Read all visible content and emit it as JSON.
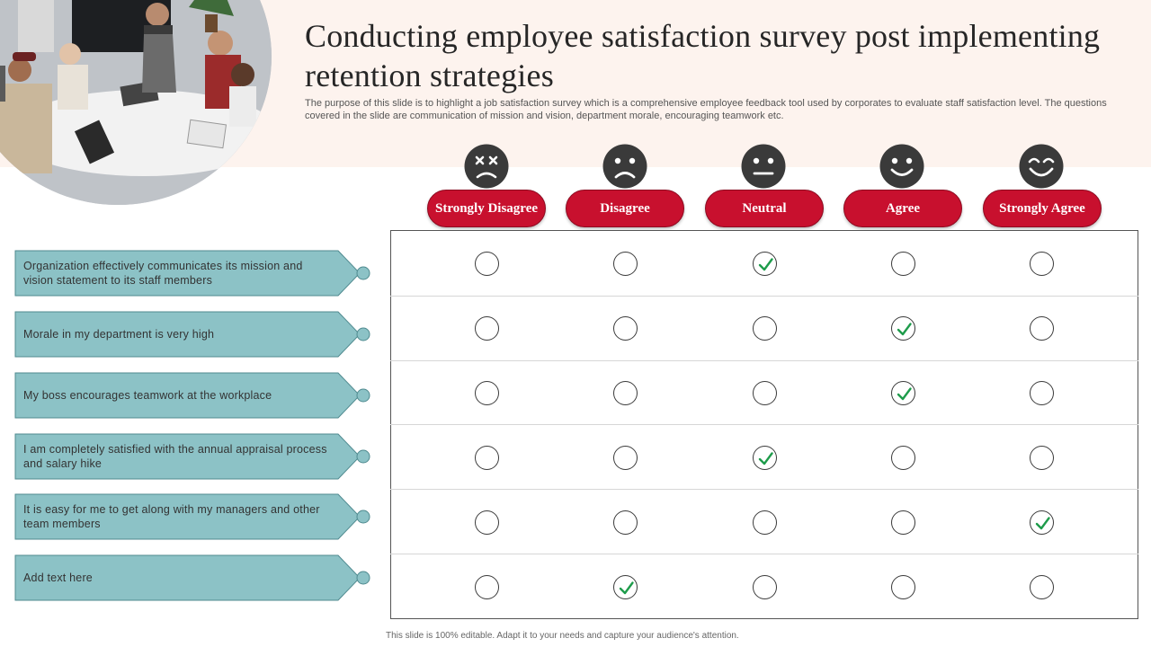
{
  "slide": {
    "title": "Conducting employee satisfaction survey post implementing retention strategies",
    "description": "The purpose of this slide is to highlight a job satisfaction survey which is a comprehensive employee feedback tool used by corporates to evaluate staff satisfaction level. The questions covered in the slide are communication of mission and vision, department morale, encouraging teamwork etc.",
    "footer": "This slide is 100% editable. Adapt it to your needs and capture your audience's attention."
  },
  "theme": {
    "band_color": "#fdf3ee",
    "accent_color": "#c8102e",
    "label_color": "#8cc2c6",
    "check_color": "#1e9c4b"
  },
  "scale": [
    {
      "label": "Strongly Disagree",
      "icon": "dizzy-face-icon"
    },
    {
      "label": "Disagree",
      "icon": "sad-face-icon"
    },
    {
      "label": "Neutral",
      "icon": "neutral-face-icon"
    },
    {
      "label": "Agree",
      "icon": "smile-face-icon"
    },
    {
      "label": "Strongly Agree",
      "icon": "grin-face-icon"
    }
  ],
  "questions": [
    {
      "text": "Organization effectively communicates its mission and vision statement to its staff members",
      "answer": 2
    },
    {
      "text": "Morale in my department is very high",
      "answer": 3
    },
    {
      "text": "My boss encourages teamwork at the workplace",
      "answer": 3
    },
    {
      "text": "I am completely satisfied with the annual appraisal process and salary hike",
      "answer": 2
    },
    {
      "text": "It is easy for me to get along with my managers and other team members",
      "answer": 4
    },
    {
      "text": "Add text here",
      "answer": 1
    }
  ],
  "image": {
    "icon": "team-meeting-photo"
  }
}
